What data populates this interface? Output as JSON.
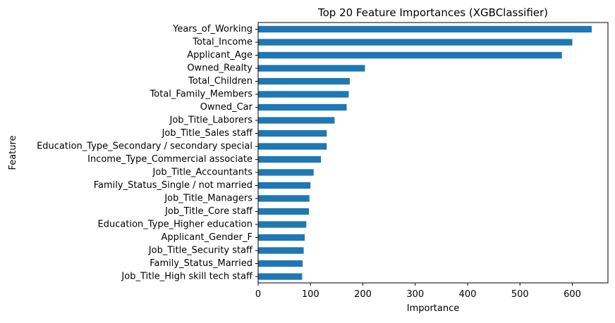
{
  "chart_data": {
    "type": "bar",
    "orientation": "horizontal",
    "title": "Top 20 Feature Importances (XGBClassifier)",
    "xlabel": "Importance",
    "ylabel": "Feature",
    "xlim": [
      0,
      668
    ],
    "xticks": [
      0,
      100,
      200,
      300,
      400,
      500,
      600
    ],
    "grid": false,
    "bar_color": "#1f77b4",
    "categories": [
      "Years_of_Working",
      "Total_Income",
      "Applicant_Age",
      "Owned_Realty",
      "Total_Children",
      "Total_Family_Members",
      "Owned_Car",
      "Job_Title_Laborers",
      "Job_Title_Sales staff",
      "Education_Type_Secondary / secondary special",
      "Income_Type_Commercial associate",
      "Job_Title_Accountants",
      "Family_Status_Single / not married",
      "Job_Title_Managers",
      "Job_Title_Core staff",
      "Education_Type_Higher education",
      "Applicant_Gender_F",
      "Job_Title_Security staff",
      "Family_Status_Married",
      "Job_Title_High skill tech staff"
    ],
    "values": [
      637,
      600,
      580,
      204,
      175,
      173,
      169,
      146,
      131,
      131,
      120,
      106,
      100,
      98,
      97,
      92,
      89,
      87,
      85,
      84
    ]
  }
}
